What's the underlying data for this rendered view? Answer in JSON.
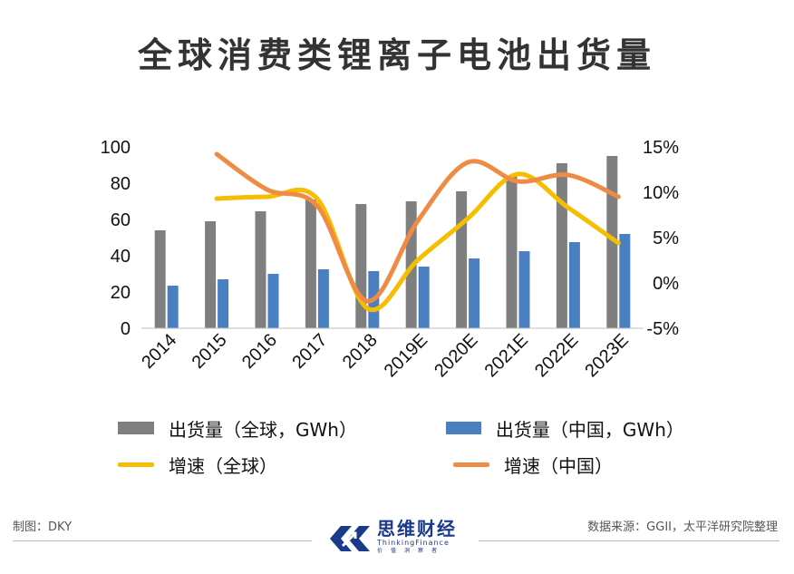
{
  "title": "全球消费类锂离子电池出货量",
  "chart_data": {
    "type": "bar",
    "categories": [
      "2014",
      "2015",
      "2016",
      "2017",
      "2018",
      "2019E",
      "2020E",
      "2021E",
      "2022E",
      "2023E"
    ],
    "series": [
      {
        "name": "出货量（全球，GWh）",
        "kind": "bar",
        "axis": "left",
        "color": "#7f7f7f",
        "values": [
          54,
          59,
          64.5,
          71,
          68.5,
          70,
          75.5,
          84,
          91,
          95
        ]
      },
      {
        "name": "出货量（中国，GWh）",
        "kind": "bar",
        "axis": "left",
        "color": "#4a7fc1",
        "values": [
          23.5,
          27,
          30,
          32.5,
          31.5,
          34,
          38.5,
          42.5,
          47.5,
          52
        ]
      },
      {
        "name": "增速（全球）",
        "kind": "line",
        "axis": "right",
        "color": "#f5be00",
        "values": [
          null,
          9.3,
          9.5,
          9.3,
          -2.8,
          2.5,
          7.1,
          12.0,
          8.3,
          4.4
        ]
      },
      {
        "name": "增速（中国）",
        "kind": "line",
        "axis": "right",
        "color": "#ee8c45",
        "values": [
          null,
          14.2,
          10.3,
          8.5,
          -2.0,
          6.8,
          13.3,
          11.2,
          11.9,
          9.5
        ]
      }
    ],
    "y_left": {
      "min": 0,
      "max": 100,
      "ticks": [
        "0",
        "20",
        "40",
        "60",
        "80",
        "100"
      ]
    },
    "y_right": {
      "min": -5,
      "max": 15,
      "ticks": [
        "-5%",
        "0%",
        "5%",
        "10%",
        "15%"
      ]
    },
    "xlabel": "",
    "ylabel": "",
    "grid": false,
    "legend_position": "bottom"
  },
  "legend": [
    {
      "label": "出货量（全球，GWh）",
      "color": "#7f7f7f",
      "kind": "bar"
    },
    {
      "label": "出货量（中国，GWh）",
      "color": "#4a7fc1",
      "kind": "bar"
    },
    {
      "label": "增速（全球）",
      "color": "#f5be00",
      "kind": "line"
    },
    {
      "label": "增速（中国）",
      "color": "#ee8c45",
      "kind": "line"
    }
  ],
  "footer": {
    "maker": "制图：DKY",
    "source": "数据来源：GGII，太平洋研究院整理",
    "logo_cn": "思维财经",
    "logo_en": "ThinkingFinance",
    "logo_sub": "价值洞察者"
  }
}
